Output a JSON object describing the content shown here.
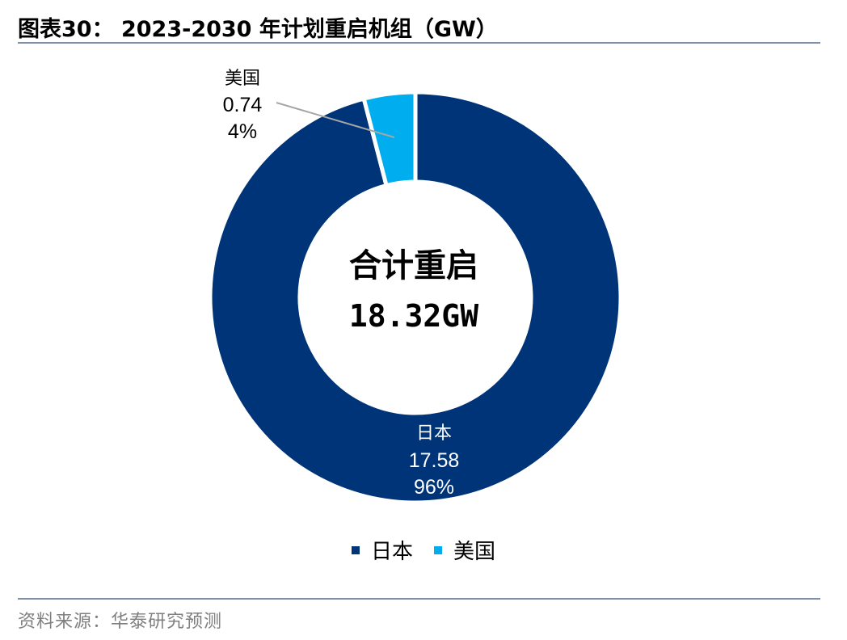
{
  "figure": {
    "title": "图表30： 2023-2030 年计划重启机组（GW）",
    "source": "资料来源：华泰研究预测"
  },
  "chart_data": {
    "type": "pie",
    "subtype": "donut",
    "center_text": [
      "合计重启",
      "18.32GW"
    ],
    "slices": [
      {
        "label": "日本",
        "value": 17.58,
        "percent": "96%",
        "value_text": "17.58",
        "color": "#003478"
      },
      {
        "label": "美国",
        "value": 0.74,
        "percent": "4%",
        "value_text": "0.74",
        "color": "#00aeef"
      }
    ],
    "legend_position": "bottom"
  }
}
